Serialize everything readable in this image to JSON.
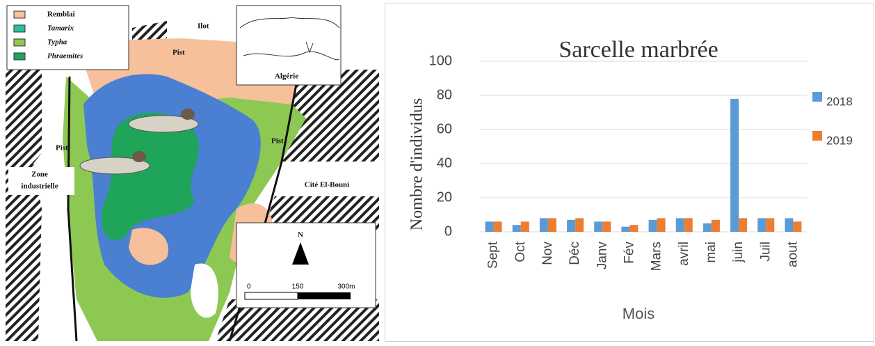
{
  "map": {
    "legend": [
      "Remblai",
      "Tamarix",
      "Typha",
      "Phraemites"
    ],
    "labels": [
      "Ilot",
      "Pist",
      "Pist",
      "Pist",
      "Zone",
      "industrielle",
      "Cité El-Bouni"
    ],
    "inset": "Algérie",
    "north": "N",
    "scale": [
      "0",
      "150",
      "300m"
    ]
  },
  "chart_data": {
    "type": "bar",
    "title": "Sarcelle marbrée",
    "x_label": "Mois",
    "y_label": "Nombre d'individus",
    "categories": [
      "Sept",
      "Oct",
      "Nov",
      "Déc",
      "Janv",
      "Fév",
      "Mars",
      "avril",
      "mai",
      "juin",
      "Juil",
      "aout"
    ],
    "series": [
      {
        "name": "2018",
        "color": "#5b9bd5",
        "values": [
          6,
          4,
          8,
          7,
          6,
          3,
          7,
          8,
          5,
          78,
          8,
          8
        ]
      },
      {
        "name": "2019",
        "color": "#ed7d31",
        "values": [
          6,
          6,
          8,
          8,
          6,
          4,
          8,
          8,
          7,
          8,
          8,
          6
        ]
      }
    ],
    "ylim": [
      0,
      100
    ],
    "yticks": [
      0,
      20,
      40,
      60,
      80,
      100
    ],
    "grid": true,
    "legend": "right"
  }
}
